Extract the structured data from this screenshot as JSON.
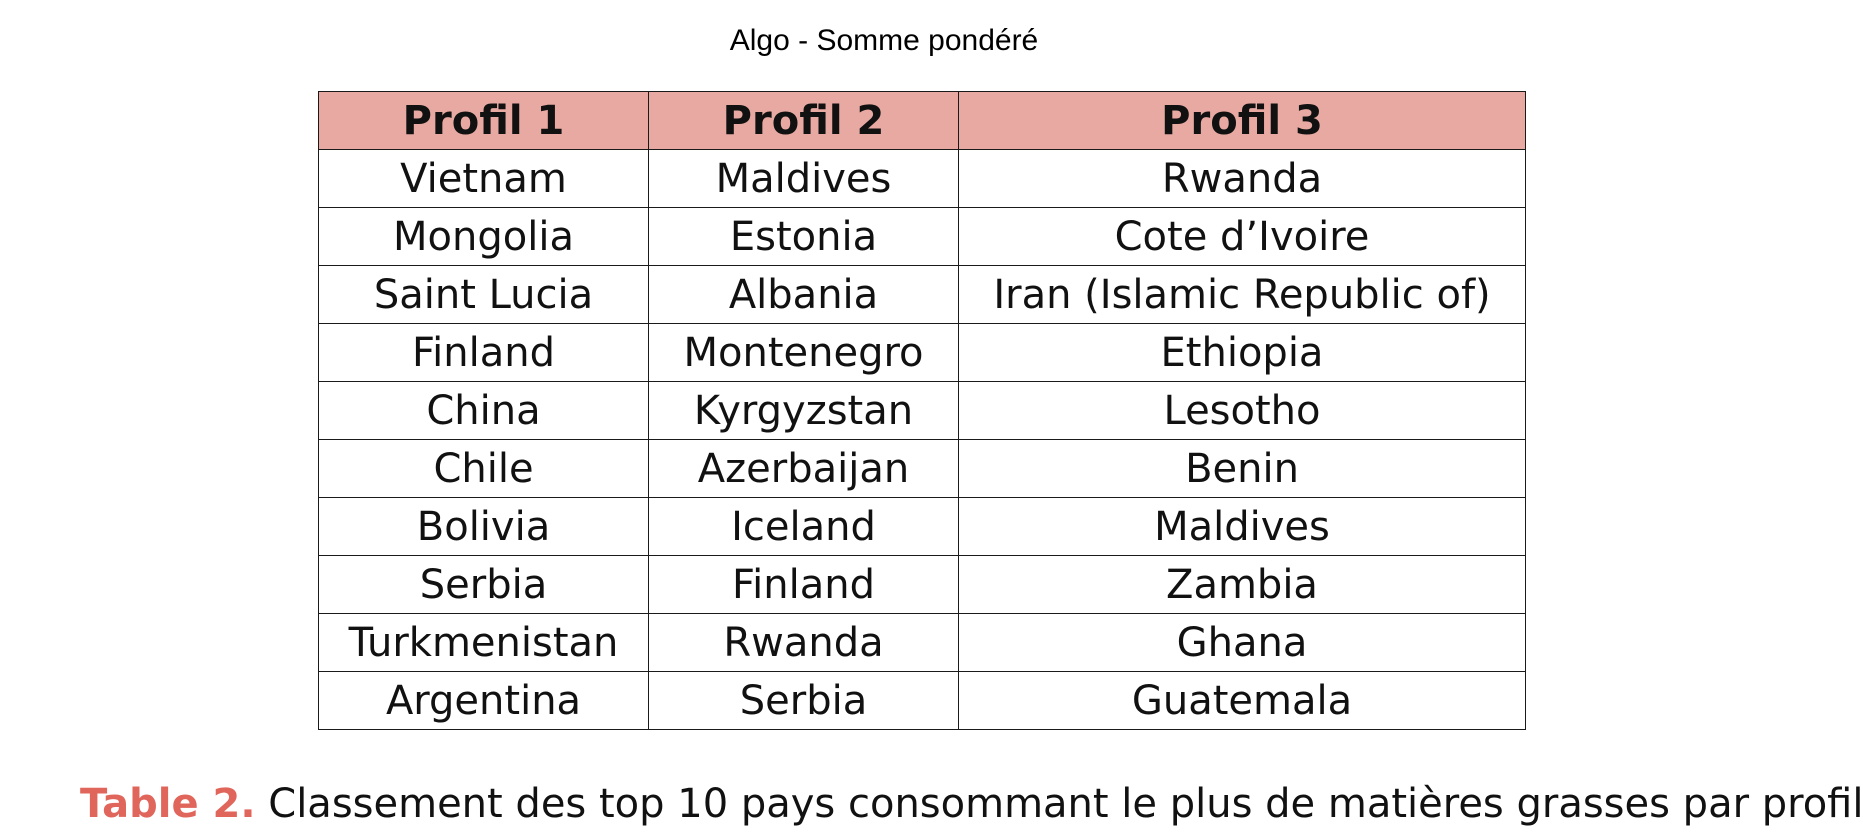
{
  "title": "Algo - Somme pondéré",
  "table": {
    "headers": [
      "Profil 1",
      "Profil 2",
      "Profil 3"
    ],
    "rows": [
      [
        "Vietnam",
        "Maldives",
        "Rwanda"
      ],
      [
        "Mongolia",
        "Estonia",
        "Cote d’Ivoire"
      ],
      [
        "Saint Lucia",
        "Albania",
        "Iran (Islamic Republic of)"
      ],
      [
        "Finland",
        "Montenegro",
        "Ethiopia"
      ],
      [
        "China",
        "Kyrgyzstan",
        "Lesotho"
      ],
      [
        "Chile",
        "Azerbaijan",
        "Benin"
      ],
      [
        "Bolivia",
        "Iceland",
        "Maldives"
      ],
      [
        "Serbia",
        "Finland",
        "Zambia"
      ],
      [
        "Turkmenistan",
        "Rwanda",
        "Ghana"
      ],
      [
        "Argentina",
        "Serbia",
        "Guatemala"
      ]
    ]
  },
  "caption": {
    "label": "Table 2.",
    "text": " Classement des top 10 pays consommant le plus de matières grasses par profil"
  },
  "colors": {
    "header_background": "#e8a9a2",
    "caption_label": "#e0655a"
  }
}
